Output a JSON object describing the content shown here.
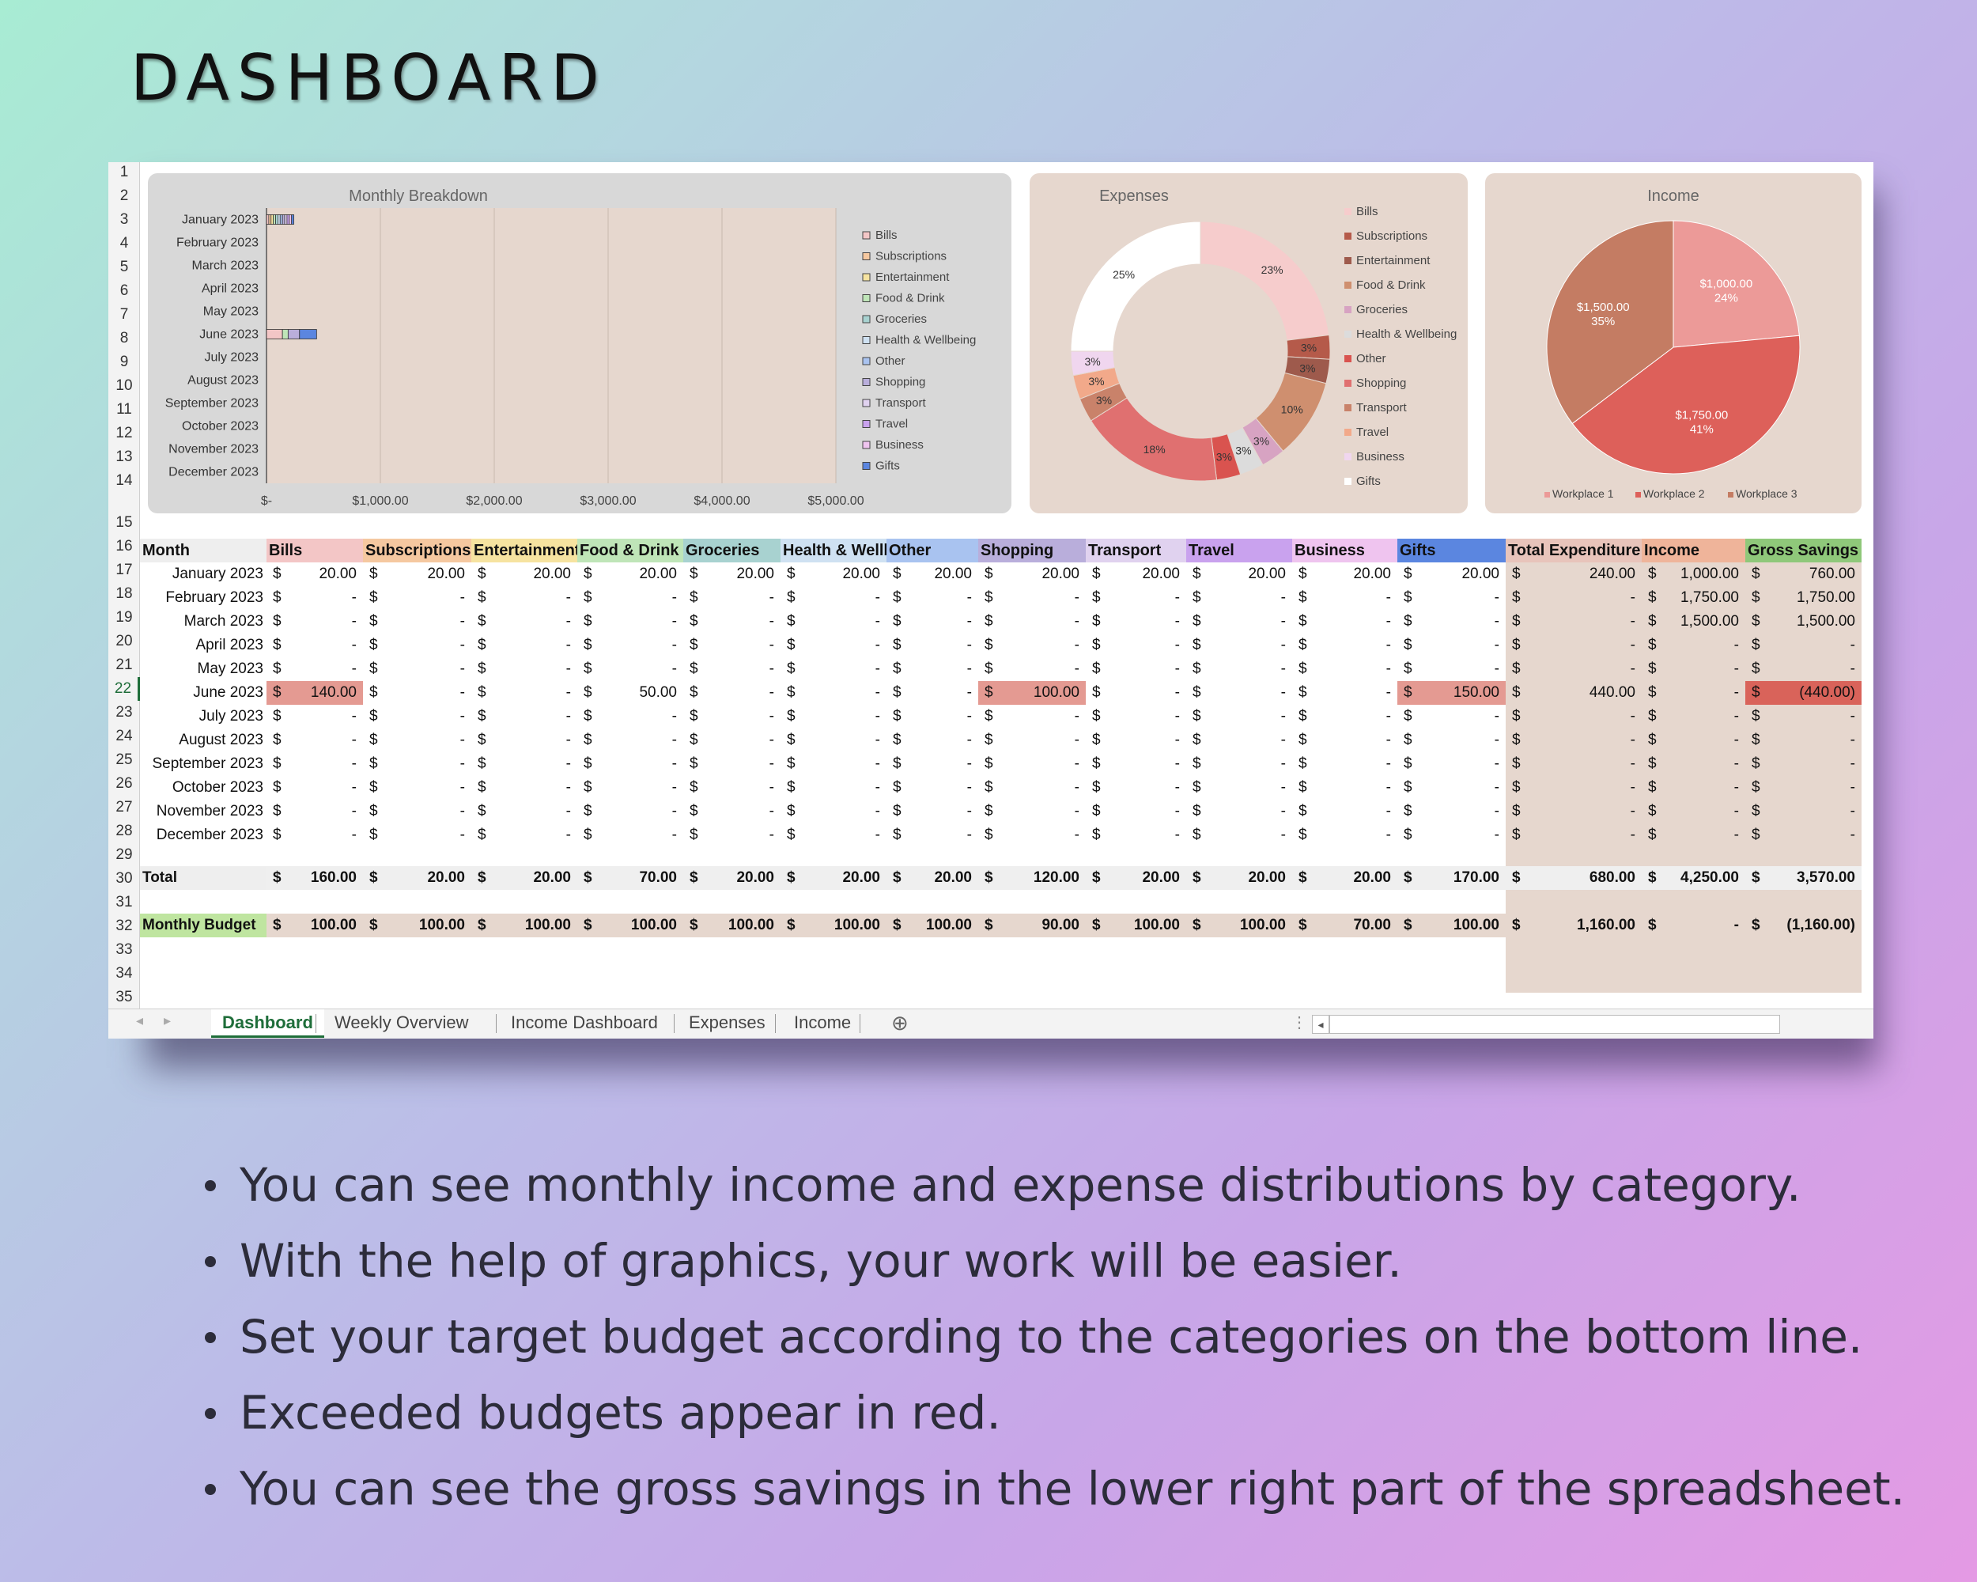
{
  "page": {
    "title": "DASHBOARD"
  },
  "bullets": [
    "You can see monthly income and expense distributions by category.",
    "With the help of graphics, your work will be easier.",
    "Set your target budget according to the categories on the bottom line.",
    "Exceeded budgets appear in red.",
    "You can see the gross savings in the lower right part of the spreadsheet."
  ],
  "row_numbers": [
    "1",
    "2",
    "3",
    "4",
    "5",
    "6",
    "7",
    "8",
    "9",
    "10",
    "11",
    "12",
    "13",
    "14",
    "15",
    "16",
    "17",
    "18",
    "19",
    "20",
    "21",
    "22",
    "23",
    "24",
    "25",
    "26",
    "27",
    "28",
    "29",
    "30",
    "31",
    "32",
    "33",
    "34",
    "35"
  ],
  "colors": {
    "background": "#e6d7ce",
    "red_highlight": "#e49a92",
    "dark_red": "#d9635a"
  },
  "charts": {
    "monthly": {
      "title": "Monthly Breakdown",
      "months": [
        "January 2023",
        "February 2023",
        "March 2023",
        "April 2023",
        "May 2023",
        "June 2023",
        "July 2023",
        "August 2023",
        "September 2023",
        "October 2023",
        "November 2023",
        "December 2023"
      ],
      "x_ticks": [
        "$-",
        "$1,000.00",
        "$2,000.00",
        "$3,000.00",
        "$4,000.00",
        "$5,000.00"
      ],
      "legend": [
        "Bills",
        "Subscriptions",
        "Entertainment",
        "Food & Drink",
        "Groceries",
        "Health & Wellbeing",
        "Other",
        "Shopping",
        "Transport",
        "Travel",
        "Business",
        "Gifts"
      ],
      "legend_colors": [
        "#f3c6c6",
        "#f5c8a0",
        "#f6e3a0",
        "#bfe5b8",
        "#a8d2d0",
        "#cfe1f2",
        "#a9c3f0",
        "#b9aedb",
        "#e0d2ef",
        "#c9a2ee",
        "#efc4ef",
        "#5b86e0"
      ],
      "stacks": [
        {
          "month_index": 0,
          "values": [
            20,
            20,
            20,
            20,
            20,
            20,
            20,
            20,
            20,
            20,
            20,
            20
          ]
        },
        {
          "month_index": 5,
          "values": [
            140,
            0,
            0,
            50,
            0,
            0,
            0,
            100,
            0,
            0,
            0,
            150
          ]
        }
      ],
      "xmax": 5000
    },
    "expenses": {
      "title": "Expenses",
      "legend": [
        "Bills",
        "Subscriptions",
        "Entertainment",
        "Food & Drink",
        "Groceries",
        "Health & Wellbeing",
        "Other",
        "Shopping",
        "Transport",
        "Travel",
        "Business",
        "Gifts"
      ],
      "legend_colors": [
        "#f6cccc",
        "#b55a4a",
        "#9e5a4c",
        "#cf8f6f",
        "#d7a3c2",
        "#dcdcdc",
        "#d9534f",
        "#e07070",
        "#c9826a",
        "#f2a98a",
        "#f0d6ef",
        "#ffffff"
      ],
      "values": [
        23,
        3,
        3,
        10,
        3,
        3,
        3,
        18,
        3,
        3,
        3,
        25
      ],
      "labels": [
        "23%",
        "3%",
        "3%",
        "10%",
        "3%",
        "3%",
        "3%",
        "18%",
        "3%",
        "3%",
        "3%",
        "25%"
      ]
    },
    "income": {
      "title": "Income",
      "legend": [
        "Workplace 1",
        "Workplace 2",
        "Workplace 3"
      ],
      "colors": [
        "#ec9a98",
        "#dd605a",
        "#c47c63"
      ],
      "values": [
        1000,
        1750,
        1500
      ],
      "amount_labels": [
        "$1,000.00",
        "$1,750.00",
        "$1,500.00"
      ],
      "pct_labels": [
        "24%",
        "41%",
        "35%"
      ]
    }
  },
  "table": {
    "headers": [
      "Month",
      "Bills",
      "Subscriptions",
      "Entertainment",
      "Food & Drink",
      "Groceries",
      "Health & Wellbeing",
      "Other",
      "Shopping",
      "Transport",
      "Travel",
      "Business",
      "Gifts",
      "Total Expenditure",
      "Income",
      "Gross Savings"
    ],
    "header_colors": [
      "#eeeeee",
      "#f3c6c6",
      "#f5c8a0",
      "#f6e3a0",
      "#bfe5b8",
      "#a8d2d0",
      "#cfe1f2",
      "#a9c3f0",
      "#b9aedb",
      "#e0d2ef",
      "#c9a2ee",
      "#efc4ef",
      "#5b86e0",
      "#e8c4bb",
      "#efb49a",
      "#8fc87a"
    ],
    "currency": "$",
    "rows": [
      {
        "month": "January 2023",
        "values": [
          "20.00",
          "20.00",
          "20.00",
          "20.00",
          "20.00",
          "20.00",
          "20.00",
          "20.00",
          "20.00",
          "20.00",
          "20.00",
          "20.00",
          "240.00",
          "1,000.00",
          "760.00"
        ]
      },
      {
        "month": "February 2023",
        "values": [
          "-",
          "-",
          "-",
          "-",
          "-",
          "-",
          "-",
          "-",
          "-",
          "-",
          "-",
          "-",
          "-",
          "1,750.00",
          "1,750.00"
        ]
      },
      {
        "month": "March 2023",
        "values": [
          "-",
          "-",
          "-",
          "-",
          "-",
          "-",
          "-",
          "-",
          "-",
          "-",
          "-",
          "-",
          "-",
          "1,500.00",
          "1,500.00"
        ]
      },
      {
        "month": "April 2023",
        "values": [
          "-",
          "-",
          "-",
          "-",
          "-",
          "-",
          "-",
          "-",
          "-",
          "-",
          "-",
          "-",
          "-",
          "-",
          "-"
        ]
      },
      {
        "month": "May 2023",
        "values": [
          "-",
          "-",
          "-",
          "-",
          "-",
          "-",
          "-",
          "-",
          "-",
          "-",
          "-",
          "-",
          "-",
          "-",
          "-"
        ]
      },
      {
        "month": "June 2023",
        "values": [
          "140.00",
          "-",
          "-",
          "50.00",
          "-",
          "-",
          "-",
          "100.00",
          "-",
          "-",
          "-",
          "150.00",
          "440.00",
          "-",
          "(440.00)"
        ]
      },
      {
        "month": "July 2023",
        "values": [
          "-",
          "-",
          "-",
          "-",
          "-",
          "-",
          "-",
          "-",
          "-",
          "-",
          "-",
          "-",
          "-",
          "-",
          "-"
        ]
      },
      {
        "month": "August 2023",
        "values": [
          "-",
          "-",
          "-",
          "-",
          "-",
          "-",
          "-",
          "-",
          "-",
          "-",
          "-",
          "-",
          "-",
          "-",
          "-"
        ]
      },
      {
        "month": "September 2023",
        "values": [
          "-",
          "-",
          "-",
          "-",
          "-",
          "-",
          "-",
          "-",
          "-",
          "-",
          "-",
          "-",
          "-",
          "-",
          "-"
        ]
      },
      {
        "month": "October 2023",
        "values": [
          "-",
          "-",
          "-",
          "-",
          "-",
          "-",
          "-",
          "-",
          "-",
          "-",
          "-",
          "-",
          "-",
          "-",
          "-"
        ]
      },
      {
        "month": "November 2023",
        "values": [
          "-",
          "-",
          "-",
          "-",
          "-",
          "-",
          "-",
          "-",
          "-",
          "-",
          "-",
          "-",
          "-",
          "-",
          "-"
        ]
      },
      {
        "month": "December 2023",
        "values": [
          "-",
          "-",
          "-",
          "-",
          "-",
          "-",
          "-",
          "-",
          "-",
          "-",
          "-",
          "-",
          "-",
          "-",
          "-"
        ]
      }
    ],
    "total": {
      "label": "Total",
      "values": [
        "160.00",
        "20.00",
        "20.00",
        "70.00",
        "20.00",
        "20.00",
        "20.00",
        "120.00",
        "20.00",
        "20.00",
        "20.00",
        "170.00",
        "680.00",
        "4,250.00",
        "3,570.00"
      ]
    },
    "budget": {
      "label": "Monthly Budget",
      "values": [
        "100.00",
        "100.00",
        "100.00",
        "100.00",
        "100.00",
        "100.00",
        "100.00",
        "90.00",
        "100.00",
        "100.00",
        "70.00",
        "100.00",
        "1,160.00",
        "-",
        "(1,160.00)"
      ]
    }
  },
  "tabs": [
    "Dashboard",
    "Weekly Overview",
    "Income Dashboard",
    "Expenses",
    "Income"
  ],
  "tab_add_icon": "plus-circle-icon"
}
